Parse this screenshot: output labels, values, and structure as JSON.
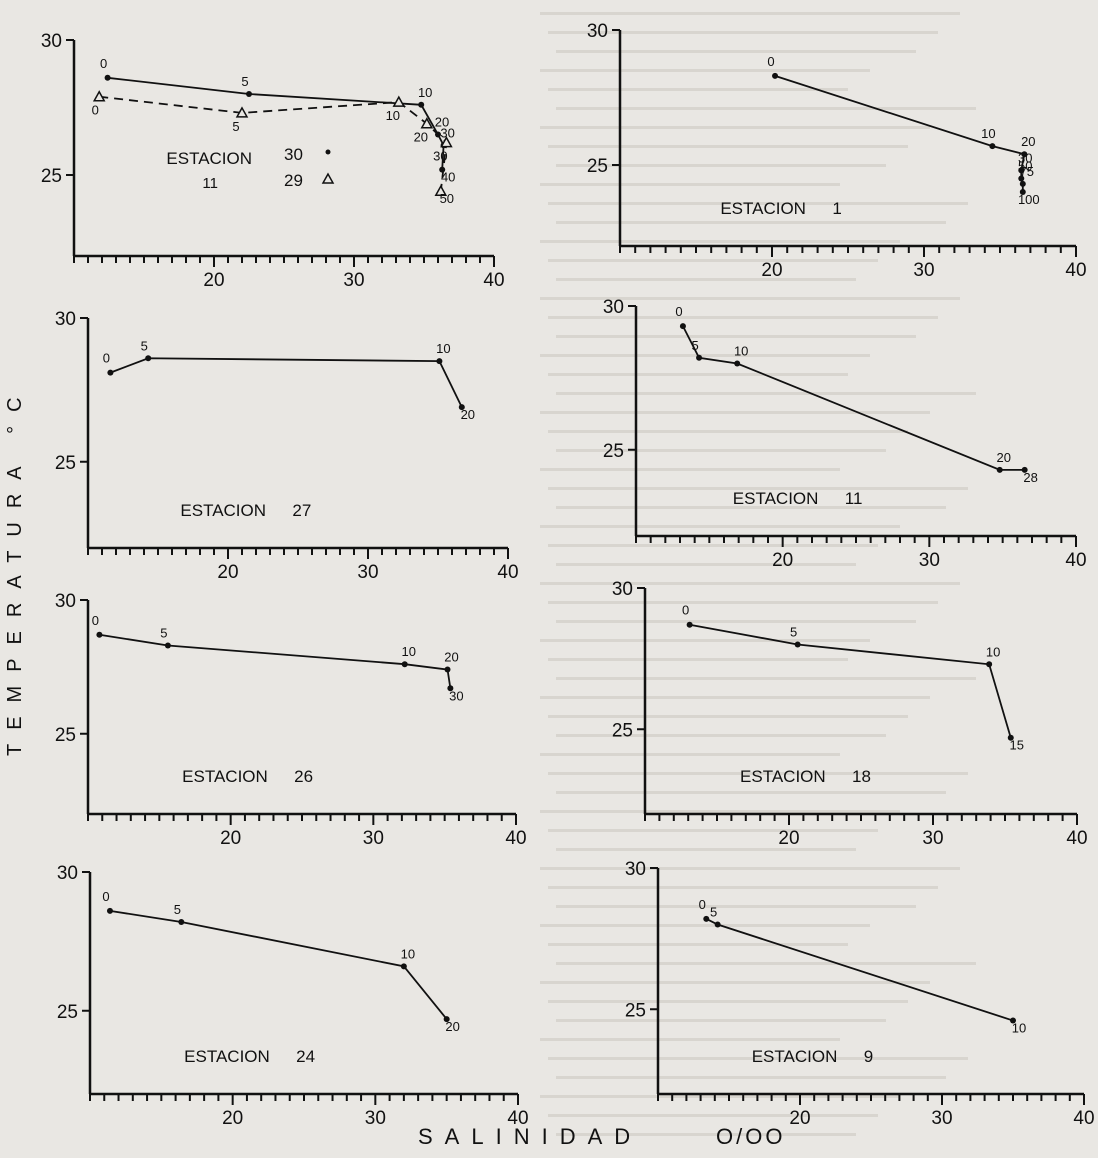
{
  "figure": {
    "ylabel": "TEMPERATURA °C",
    "xlabel": "SALINIDAD",
    "xunit": "O/OO"
  },
  "chart_data": [
    {
      "type": "line",
      "station": "ESTACION",
      "station_num": "11",
      "xlim": [
        10,
        40
      ],
      "ylim": [
        22,
        30
      ],
      "xticks": [
        20,
        30,
        40
      ],
      "yticks": [
        25,
        30
      ],
      "series": [
        {
          "marker": "circle",
          "style": "solid",
          "points": [
            {
              "x": 12.4,
              "y": 28.6,
              "label": "0"
            },
            {
              "x": 22.5,
              "y": 28.0,
              "label": "5"
            },
            {
              "x": 34.8,
              "y": 27.6,
              "label": "10"
            },
            {
              "x": 36.0,
              "y": 26.5,
              "label": "20"
            },
            {
              "x": 36.4,
              "y": 26.1,
              "label": "30"
            },
            {
              "x": 36.3,
              "y": 25.2,
              "label": "40"
            }
          ]
        },
        {
          "marker": "triangle",
          "style": "dashed",
          "points": [
            {
              "x": 11.8,
              "y": 27.9,
              "label": "0"
            },
            {
              "x": 22.0,
              "y": 27.3,
              "label": "5"
            },
            {
              "x": 33.2,
              "y": 27.7,
              "label": "10"
            },
            {
              "x": 35.2,
              "y": 26.9,
              "label": "20"
            },
            {
              "x": 36.6,
              "y": 26.2,
              "label": "30"
            },
            {
              "x": 36.2,
              "y": 24.4,
              "label": "50"
            }
          ]
        }
      ],
      "legend": [
        {
          "marker": "circle",
          "label": "30"
        },
        {
          "marker": "triangle",
          "label": "29"
        }
      ]
    },
    {
      "type": "line",
      "station": "ESTACION",
      "station_num": "1",
      "xlim": [
        10,
        40
      ],
      "ylim": [
        22,
        30
      ],
      "xticks": [
        20,
        30,
        40
      ],
      "yticks": [
        25,
        30
      ],
      "series": [
        {
          "marker": "circle",
          "style": "solid",
          "points": [
            {
              "x": 20.2,
              "y": 28.3,
              "label": "0"
            },
            {
              "x": 34.5,
              "y": 25.7,
              "label": "10"
            },
            {
              "x": 36.6,
              "y": 25.4,
              "label": "20"
            },
            {
              "x": 36.4,
              "y": 24.8,
              "label": "30"
            },
            {
              "x": 36.4,
              "y": 24.5,
              "label": "50"
            },
            {
              "x": 36.5,
              "y": 24.3,
              "label": "75"
            },
            {
              "x": 36.5,
              "y": 24.0,
              "label": "100"
            }
          ]
        }
      ]
    },
    {
      "type": "line",
      "station": "ESTACION",
      "station_num": "27",
      "xlim": [
        10,
        40
      ],
      "ylim": [
        22,
        30
      ],
      "xticks": [
        20,
        30,
        40
      ],
      "yticks": [
        25,
        30
      ],
      "series": [
        {
          "marker": "circle",
          "style": "solid",
          "points": [
            {
              "x": 11.6,
              "y": 28.1,
              "label": "0"
            },
            {
              "x": 14.3,
              "y": 28.6,
              "label": "5"
            },
            {
              "x": 35.1,
              "y": 28.5,
              "label": "10"
            },
            {
              "x": 36.7,
              "y": 26.9,
              "label": "20"
            }
          ]
        }
      ]
    },
    {
      "type": "line",
      "station": "ESTACION",
      "station_num": "11",
      "xlim": [
        10,
        40
      ],
      "ylim": [
        22,
        30
      ],
      "xticks": [
        20,
        30,
        40
      ],
      "yticks": [
        25,
        30
      ],
      "series": [
        {
          "marker": "circle",
          "style": "solid",
          "points": [
            {
              "x": 13.2,
              "y": 29.3,
              "label": "0"
            },
            {
              "x": 14.3,
              "y": 28.2,
              "label": "5"
            },
            {
              "x": 16.9,
              "y": 28.0,
              "label": "10"
            },
            {
              "x": 34.8,
              "y": 24.3,
              "label": "20"
            },
            {
              "x": 36.5,
              "y": 24.3,
              "label": "28"
            }
          ]
        }
      ]
    },
    {
      "type": "line",
      "station": "ESTACION",
      "station_num": "26",
      "xlim": [
        10,
        40
      ],
      "ylim": [
        22,
        30
      ],
      "xticks": [
        20,
        30,
        40
      ],
      "yticks": [
        25,
        30
      ],
      "series": [
        {
          "marker": "circle",
          "style": "solid",
          "points": [
            {
              "x": 10.8,
              "y": 28.7,
              "label": "0"
            },
            {
              "x": 15.6,
              "y": 28.3,
              "label": "5"
            },
            {
              "x": 32.2,
              "y": 27.6,
              "label": "10"
            },
            {
              "x": 35.2,
              "y": 27.4,
              "label": "20"
            },
            {
              "x": 35.4,
              "y": 26.7,
              "label": "30"
            }
          ]
        }
      ]
    },
    {
      "type": "line",
      "station": "ESTACION",
      "station_num": "18",
      "xlim": [
        10,
        40
      ],
      "ylim": [
        22,
        30
      ],
      "xticks": [
        20,
        30,
        40
      ],
      "yticks": [
        25,
        30
      ],
      "series": [
        {
          "marker": "circle",
          "style": "solid",
          "points": [
            {
              "x": 13.1,
              "y": 28.7,
              "label": "0"
            },
            {
              "x": 20.6,
              "y": 28.0,
              "label": "5"
            },
            {
              "x": 33.9,
              "y": 27.3,
              "label": "10"
            },
            {
              "x": 35.4,
              "y": 24.7,
              "label": "15"
            }
          ]
        }
      ]
    },
    {
      "type": "line",
      "station": "ESTACION",
      "station_num": "24",
      "xlim": [
        10,
        40
      ],
      "ylim": [
        22,
        30
      ],
      "xticks": [
        20,
        30,
        40
      ],
      "yticks": [
        25,
        30
      ],
      "series": [
        {
          "marker": "circle",
          "style": "solid",
          "points": [
            {
              "x": 11.4,
              "y": 28.6,
              "label": "0"
            },
            {
              "x": 16.4,
              "y": 28.2,
              "label": "5"
            },
            {
              "x": 32.0,
              "y": 26.6,
              "label": "10"
            },
            {
              "x": 35.0,
              "y": 24.7,
              "label": "20"
            }
          ]
        }
      ]
    },
    {
      "type": "line",
      "station": "ESTACION",
      "station_num": "9",
      "xlim": [
        10,
        40
      ],
      "ylim": [
        22,
        30
      ],
      "xticks": [
        20,
        30,
        40
      ],
      "yticks": [
        25,
        30
      ],
      "series": [
        {
          "marker": "circle",
          "style": "solid",
          "points": [
            {
              "x": 13.4,
              "y": 28.2,
              "label": "0"
            },
            {
              "x": 14.2,
              "y": 28.0,
              "label": "5"
            },
            {
              "x": 35.0,
              "y": 24.6,
              "label": "10"
            }
          ]
        }
      ]
    }
  ]
}
